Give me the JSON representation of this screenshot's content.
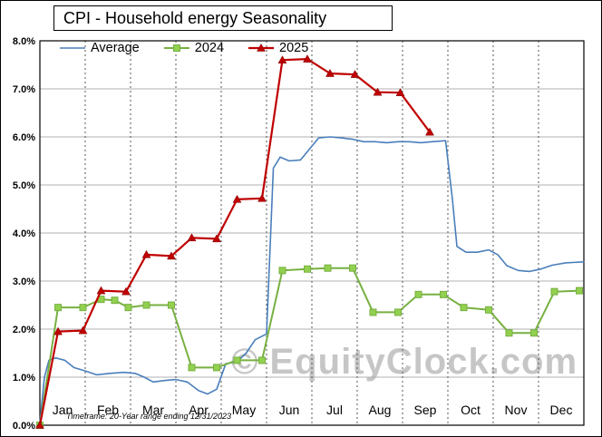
{
  "chart_data": {
    "type": "line",
    "title": "CPI - Household energy Seasonality",
    "watermark": "© EquityClock.com",
    "footnote": "Timeframe: 20-Year range ending 12/31/2023",
    "x_categories": [
      "Jan",
      "Feb",
      "Mar",
      "Apr",
      "May",
      "Jun",
      "Jul",
      "Aug",
      "Sep",
      "Oct",
      "Nov",
      "Dec"
    ],
    "y_tick_labels": [
      "0.0%",
      "1.0%",
      "2.0%",
      "3.0%",
      "4.0%",
      "5.0%",
      "6.0%",
      "7.0%",
      "8.0%"
    ],
    "y_unit": "%",
    "ylim": [
      0,
      8
    ],
    "xlim": [
      0,
      12
    ],
    "grid": {
      "horizontal": "solid",
      "vertical": "dashed"
    },
    "legend_position": "top-left-inside",
    "series": [
      {
        "name": "Average",
        "color": "#4a7ebb",
        "width": 1.6,
        "marker": "none",
        "points": [
          [
            0,
            0.05
          ],
          [
            0.1,
            1.0
          ],
          [
            0.2,
            1.35
          ],
          [
            0.35,
            1.4
          ],
          [
            0.55,
            1.35
          ],
          [
            0.75,
            1.2
          ],
          [
            1.0,
            1.13
          ],
          [
            1.25,
            1.05
          ],
          [
            1.55,
            1.08
          ],
          [
            1.85,
            1.1
          ],
          [
            2.1,
            1.08
          ],
          [
            2.3,
            1.0
          ],
          [
            2.5,
            0.9
          ],
          [
            2.75,
            0.93
          ],
          [
            3.0,
            0.95
          ],
          [
            3.25,
            0.9
          ],
          [
            3.5,
            0.72
          ],
          [
            3.7,
            0.65
          ],
          [
            3.9,
            0.75
          ],
          [
            4.1,
            1.28
          ],
          [
            4.35,
            1.32
          ],
          [
            4.55,
            1.5
          ],
          [
            4.75,
            1.78
          ],
          [
            5.0,
            1.9
          ],
          [
            5.15,
            5.35
          ],
          [
            5.3,
            5.58
          ],
          [
            5.5,
            5.5
          ],
          [
            5.75,
            5.52
          ],
          [
            5.95,
            5.75
          ],
          [
            6.15,
            5.98
          ],
          [
            6.4,
            6.0
          ],
          [
            6.65,
            5.98
          ],
          [
            6.9,
            5.95
          ],
          [
            7.15,
            5.9
          ],
          [
            7.4,
            5.9
          ],
          [
            7.65,
            5.88
          ],
          [
            7.9,
            5.9
          ],
          [
            8.15,
            5.9
          ],
          [
            8.4,
            5.88
          ],
          [
            8.65,
            5.9
          ],
          [
            8.95,
            5.92
          ],
          [
            9.1,
            4.7
          ],
          [
            9.2,
            3.72
          ],
          [
            9.4,
            3.6
          ],
          [
            9.65,
            3.6
          ],
          [
            9.9,
            3.65
          ],
          [
            10.1,
            3.55
          ],
          [
            10.3,
            3.32
          ],
          [
            10.55,
            3.22
          ],
          [
            10.8,
            3.2
          ],
          [
            11.05,
            3.25
          ],
          [
            11.3,
            3.33
          ],
          [
            11.6,
            3.38
          ],
          [
            12,
            3.4
          ]
        ]
      },
      {
        "name": "2024",
        "color": "#77b041",
        "marker_fill": "#92d050",
        "width": 2,
        "marker": "square",
        "points": [
          [
            0,
            0.0
          ],
          [
            0.4,
            2.45
          ],
          [
            0.95,
            2.45
          ],
          [
            1.35,
            2.62
          ],
          [
            1.65,
            2.6
          ],
          [
            1.95,
            2.45
          ],
          [
            2.35,
            2.5
          ],
          [
            2.9,
            2.5
          ],
          [
            3.35,
            1.2
          ],
          [
            3.9,
            1.2
          ],
          [
            4.35,
            1.35
          ],
          [
            4.9,
            1.35
          ],
          [
            5.35,
            3.22
          ],
          [
            5.9,
            3.25
          ],
          [
            6.35,
            3.27
          ],
          [
            6.9,
            3.27
          ],
          [
            7.35,
            2.35
          ],
          [
            7.9,
            2.35
          ],
          [
            8.35,
            2.72
          ],
          [
            8.9,
            2.72
          ],
          [
            9.35,
            2.45
          ],
          [
            9.9,
            2.4
          ],
          [
            10.35,
            1.92
          ],
          [
            10.9,
            1.92
          ],
          [
            11.35,
            2.78
          ],
          [
            11.9,
            2.8
          ]
        ]
      },
      {
        "name": "2025",
        "color": "#c00000",
        "width": 2.2,
        "marker": "triangle",
        "points": [
          [
            0,
            0.0
          ],
          [
            0.4,
            1.95
          ],
          [
            0.95,
            1.97
          ],
          [
            1.35,
            2.8
          ],
          [
            1.9,
            2.78
          ],
          [
            2.35,
            3.55
          ],
          [
            2.9,
            3.52
          ],
          [
            3.35,
            3.9
          ],
          [
            3.9,
            3.88
          ],
          [
            4.35,
            4.7
          ],
          [
            4.9,
            4.72
          ],
          [
            5.35,
            7.6
          ],
          [
            5.9,
            7.62
          ],
          [
            6.4,
            7.32
          ],
          [
            6.95,
            7.3
          ],
          [
            7.45,
            6.93
          ],
          [
            7.95,
            6.92
          ],
          [
            8.6,
            6.1
          ]
        ]
      }
    ]
  }
}
